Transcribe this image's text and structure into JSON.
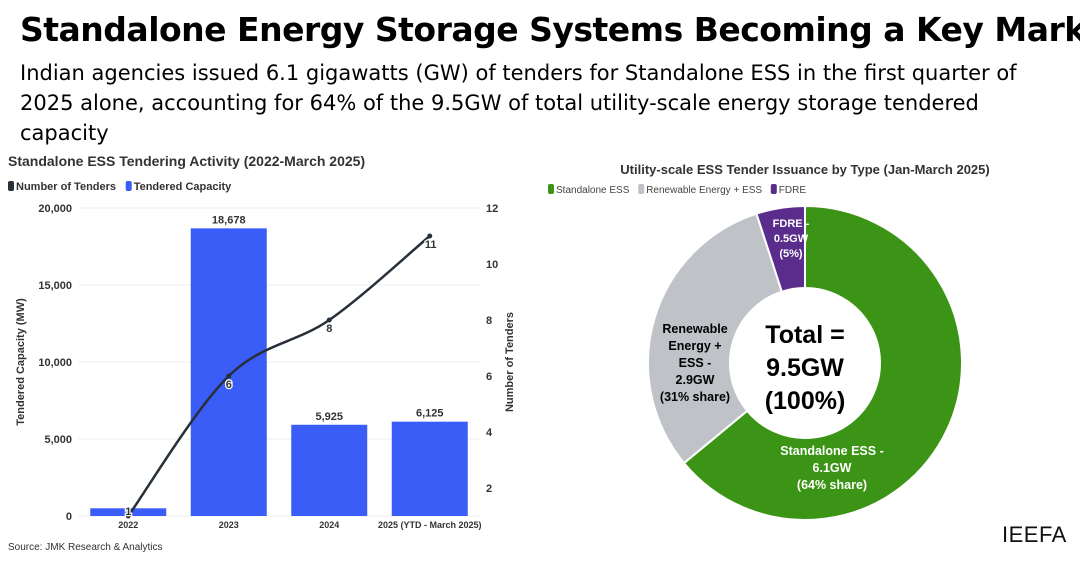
{
  "header": {
    "title": "Standalone Energy Storage Systems Becoming a Key Market",
    "subtitle": "Indian agencies issued 6.1 gigawatts (GW) of tenders for Standalone ESS in the first quarter of 2025 alone, accounting for 64% of the 9.5GW of total utility-scale energy storage tendered capacity"
  },
  "chart_data": [
    {
      "type": "bar",
      "title": "Standalone ESS Tendering Activity (2022-March 2025)",
      "categories": [
        "2022",
        "2023",
        "2024",
        "2025 (YTD - March 2025)"
      ],
      "ylabel": "Tendered Capacity (MW)",
      "y2label": "Number of Tenders",
      "ylim": [
        0,
        20000
      ],
      "yticks": [
        "0",
        "5,000",
        "10,000",
        "15,000",
        "20,000"
      ],
      "y2lim": [
        1,
        12
      ],
      "y2ticks": [
        "2",
        "4",
        "6",
        "8",
        "10",
        "12"
      ],
      "legend_position": "top-left",
      "series": [
        {
          "name": "Number of Tenders",
          "type": "line",
          "axis": "right",
          "values": [
            1,
            6,
            8,
            11
          ],
          "labels": [
            "1",
            "6",
            "8",
            "11"
          ],
          "color": "#27303a"
        },
        {
          "name": "Tendered Capacity",
          "type": "bar",
          "axis": "left",
          "values": [
            500,
            18678,
            5925,
            6125
          ],
          "labels": [
            "",
            "18,678",
            "5,925",
            "6,125"
          ],
          "color": "#3a5cf7"
        }
      ]
    },
    {
      "type": "pie",
      "title": "Utility-scale ESS Tender Issuance by Type (Jan-March 2025)",
      "legend_position": "top-left",
      "center_label": [
        "Total =",
        "9.5GW",
        "(100%)"
      ],
      "slices": [
        {
          "name": "Standalone ESS",
          "value": 64,
          "label": [
            "Standalone ESS -",
            "6.1GW",
            "(64% share)"
          ],
          "color": "#3b9415"
        },
        {
          "name": "Renewable Energy + ESS",
          "value": 31,
          "label": [
            "Renewable",
            "Energy +",
            "ESS -",
            "2.9GW",
            "(31% share)"
          ],
          "color": "#bfc3c8"
        },
        {
          "name": "FDRE",
          "value": 5,
          "label": [
            "FDRE -",
            "0.5GW",
            "(5%)"
          ],
          "color": "#5a2d8c"
        }
      ]
    }
  ],
  "footer": {
    "source": "Source: JMK Research & Analytics",
    "logo": "IEEFA"
  }
}
